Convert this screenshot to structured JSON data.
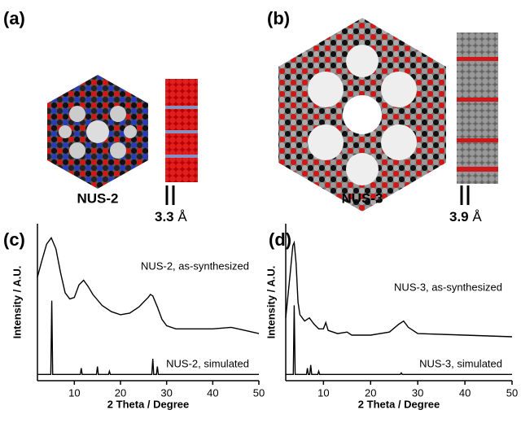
{
  "panels": [
    {
      "label": "(a)",
      "name": "NUS-2",
      "spacing": "3.3",
      "unit": "Å"
    },
    {
      "label": "(b)",
      "name": "NUS-3",
      "spacing": "3.9",
      "unit": "Å"
    }
  ],
  "chart_data": [
    {
      "type": "line",
      "panel": "(c)",
      "xlabel": "2 Theta / Degree",
      "ylabel": "Intensity / A.U.",
      "xlim": [
        2,
        50
      ],
      "xticks": [
        10,
        20,
        30,
        40,
        50
      ],
      "ylim": [
        0,
        100
      ],
      "series": [
        {
          "name": "NUS-2, as-synthesized",
          "color": "#000000",
          "x": [
            2,
            3,
            4,
            5,
            6,
            7,
            8,
            9,
            10,
            11,
            12,
            13,
            14,
            16,
            18,
            20,
            22,
            24,
            25,
            26,
            26.5,
            27,
            28,
            29,
            30,
            32,
            36,
            40,
            44,
            47,
            50
          ],
          "values": [
            66,
            77,
            87,
            91,
            84,
            69,
            56,
            52,
            53,
            61,
            64,
            60,
            55,
            48,
            44,
            42,
            43,
            47,
            50,
            53,
            55,
            54,
            47,
            39,
            35,
            33,
            33,
            33,
            34,
            32,
            30
          ]
        },
        {
          "name": "NUS-2, simulated",
          "color": "#000000",
          "x": [
            2,
            4.9,
            5.1,
            5.3,
            11.3,
            11.5,
            11.7,
            14.8,
            15,
            15.2,
            17.4,
            17.6,
            17.8,
            26.8,
            27,
            27.2,
            27.8,
            28,
            28.2,
            30,
            50
          ],
          "values": [
            4,
            4,
            51,
            4,
            4,
            8,
            4,
            4,
            9,
            4,
            4,
            6,
            4,
            4,
            14,
            4,
            4,
            9,
            4,
            4,
            4
          ]
        }
      ]
    },
    {
      "type": "line",
      "panel": "(d)",
      "xlabel": "2 Theta / Degree",
      "ylabel": "Intensity / A.U.",
      "xlim": [
        2,
        50
      ],
      "xticks": [
        10,
        20,
        30,
        40,
        50
      ],
      "ylim": [
        0,
        100
      ],
      "series": [
        {
          "name": "NUS-3, as-synthesized",
          "color": "#000000",
          "x": [
            2,
            3,
            3.5,
            3.8,
            4.2,
            4.6,
            5,
            6,
            7,
            8,
            9,
            10,
            10.5,
            11,
            13,
            15,
            16,
            20,
            24,
            26,
            27,
            28,
            30,
            40,
            50
          ],
          "values": [
            40,
            70,
            86,
            88,
            75,
            50,
            42,
            38,
            40,
            36,
            33,
            33,
            37,
            32,
            30,
            31,
            29,
            29,
            31,
            36,
            38,
            34,
            30,
            29,
            28
          ]
        },
        {
          "name": "NUS-3, simulated",
          "color": "#000000",
          "x": [
            2,
            3.6,
            3.8,
            4,
            6.4,
            6.6,
            6.8,
            7.1,
            7.3,
            7.5,
            8.8,
            9,
            9.2,
            26.3,
            26.5,
            26.7,
            50
          ],
          "values": [
            4,
            4,
            48,
            4,
            4,
            8,
            4,
            4,
            10,
            4,
            4,
            6,
            4,
            4,
            5,
            4,
            4
          ]
        }
      ]
    }
  ]
}
